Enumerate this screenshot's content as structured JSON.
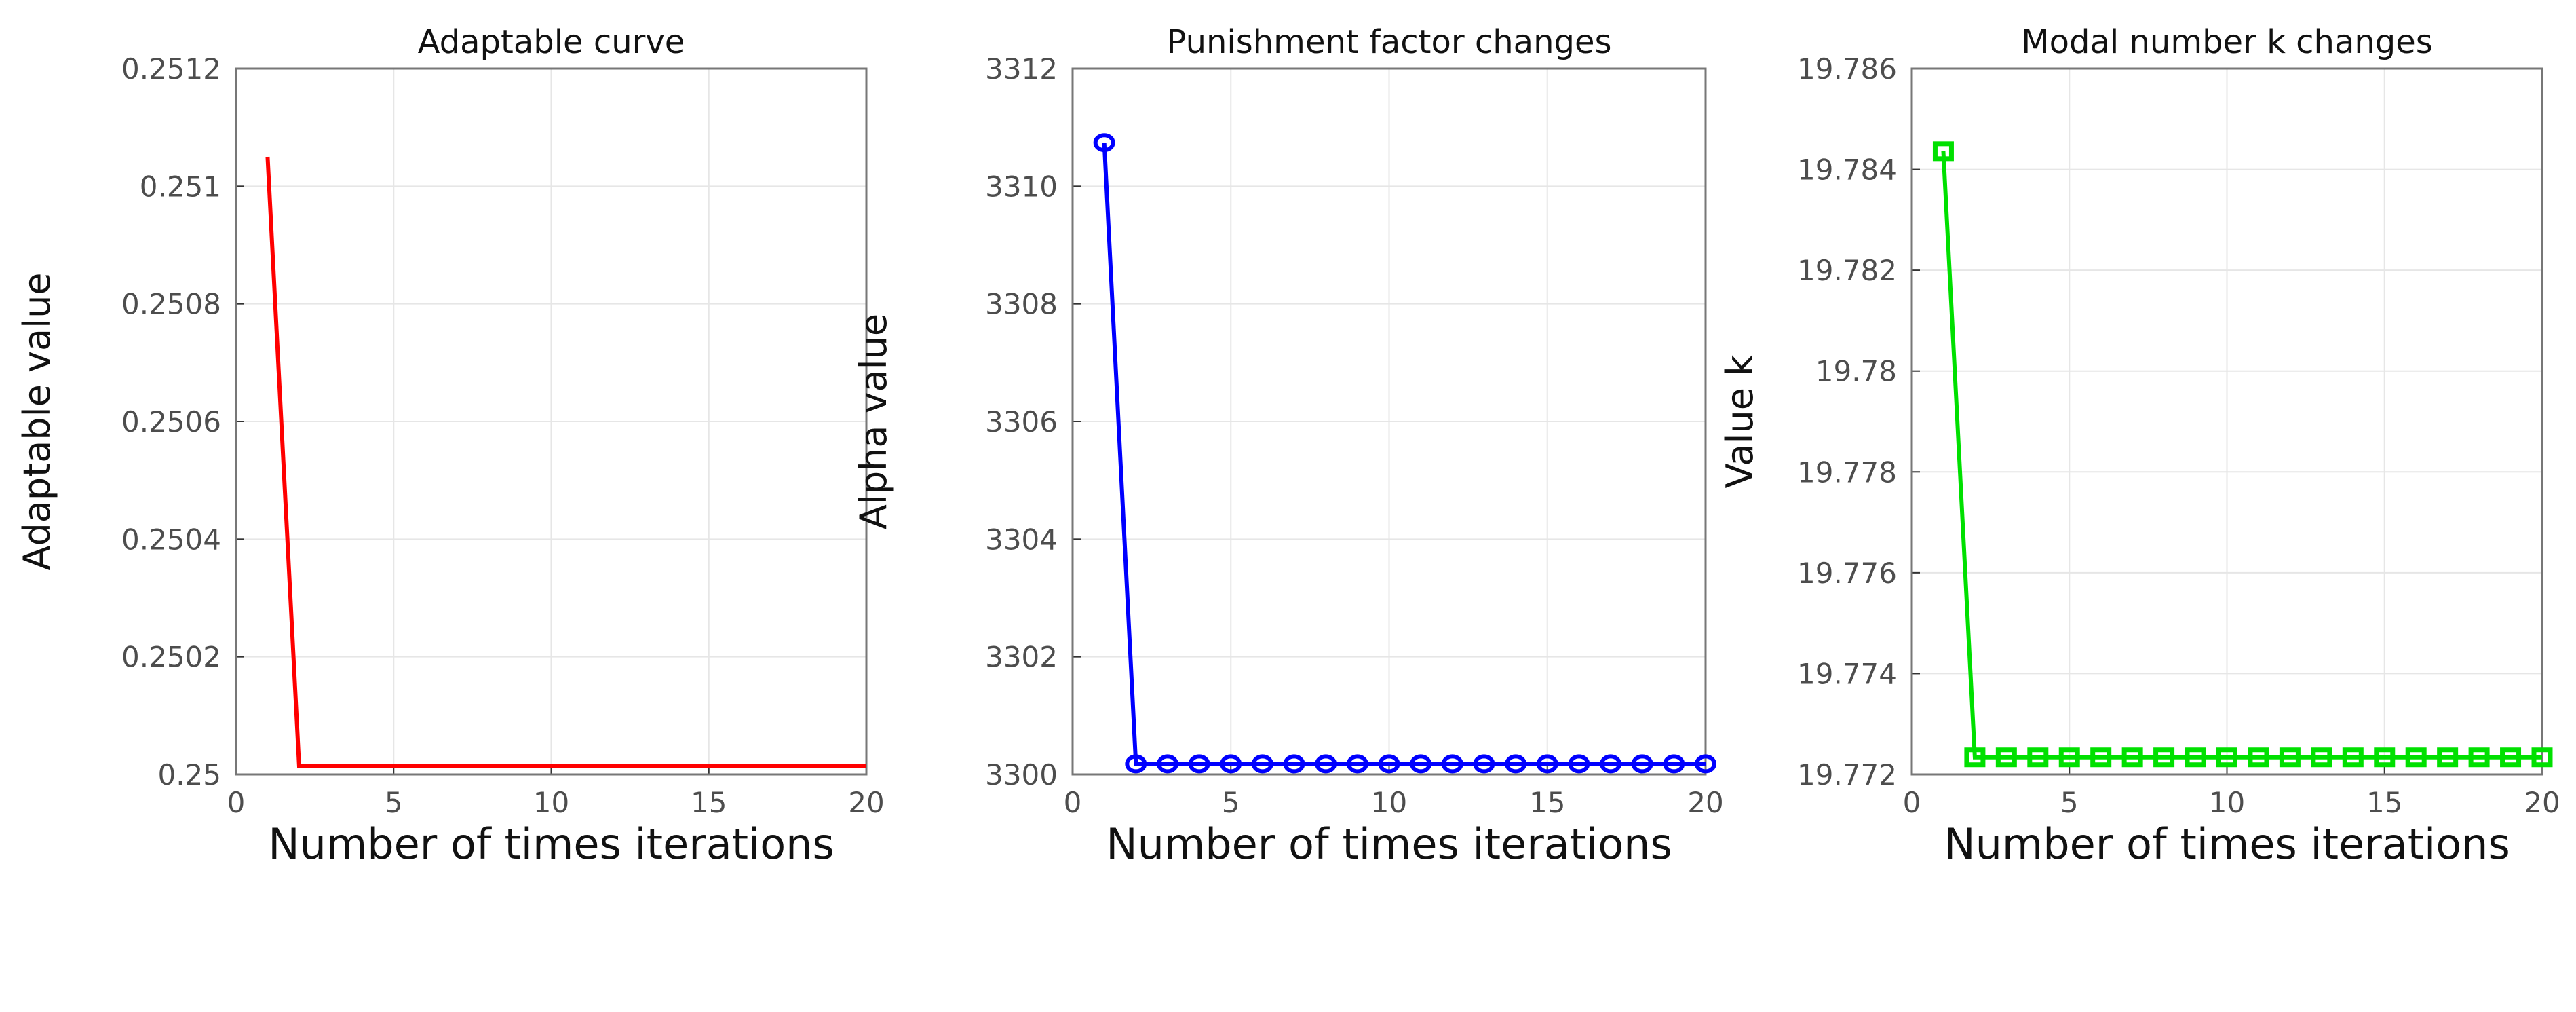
{
  "chart_data": [
    {
      "type": "line",
      "title": "Adaptable curve",
      "xlabel": "Number of times iterations",
      "ylabel": "Adaptable value",
      "xlim": [
        0,
        20
      ],
      "ylim": [
        0.25,
        0.2512
      ],
      "xticks": [
        "0",
        "5",
        "10",
        "15",
        "20"
      ],
      "yticks": [
        "0.25",
        "0.2502",
        "0.2504",
        "0.2506",
        "0.2508",
        "0.251",
        "0.2512"
      ],
      "grid": true,
      "color": "#ff0000",
      "marker": "none",
      "series": [
        {
          "x": [
            1,
            2,
            3,
            4,
            5,
            6,
            7,
            8,
            9,
            10,
            11,
            12,
            13,
            14,
            15,
            16,
            17,
            18,
            19,
            20
          ],
          "y": [
            0.25105,
            0.250015,
            0.250015,
            0.250015,
            0.250015,
            0.250015,
            0.250015,
            0.250015,
            0.250015,
            0.250015,
            0.250015,
            0.250015,
            0.250015,
            0.250015,
            0.250015,
            0.250015,
            0.250015,
            0.250015,
            0.250015,
            0.250015
          ]
        }
      ]
    },
    {
      "type": "line",
      "title": "Punishment factor changes",
      "xlabel": "Number of times iterations",
      "ylabel": "Alpha value",
      "xlim": [
        0,
        20
      ],
      "ylim": [
        3300,
        3312
      ],
      "xticks": [
        "0",
        "5",
        "10",
        "15",
        "20"
      ],
      "yticks": [
        "3300",
        "3302",
        "3304",
        "3306",
        "3308",
        "3310",
        "3312"
      ],
      "grid": true,
      "color": "#0000ff",
      "marker": "circle",
      "series": [
        {
          "x": [
            1,
            2,
            3,
            4,
            5,
            6,
            7,
            8,
            9,
            10,
            11,
            12,
            13,
            14,
            15,
            16,
            17,
            18,
            19,
            20
          ],
          "y": [
            3310.74,
            3300.18,
            3300.18,
            3300.18,
            3300.18,
            3300.18,
            3300.18,
            3300.18,
            3300.18,
            3300.18,
            3300.18,
            3300.18,
            3300.18,
            3300.18,
            3300.18,
            3300.18,
            3300.18,
            3300.18,
            3300.18,
            3300.18
          ]
        }
      ]
    },
    {
      "type": "line",
      "title": "Modal number k changes",
      "xlabel": "Number of times iterations",
      "ylabel": "Value k",
      "xlim": [
        0,
        20
      ],
      "ylim": [
        19.772,
        19.786
      ],
      "xticks": [
        "0",
        "5",
        "10",
        "15",
        "20"
      ],
      "yticks": [
        "19.772",
        "19.774",
        "19.776",
        "19.778",
        "19.78",
        "19.782",
        "19.784",
        "19.786"
      ],
      "grid": true,
      "color": "#00e000",
      "marker": "square",
      "series": [
        {
          "x": [
            1,
            2,
            3,
            4,
            5,
            6,
            7,
            8,
            9,
            10,
            11,
            12,
            13,
            14,
            15,
            16,
            17,
            18,
            19,
            20
          ],
          "y": [
            19.78436,
            19.77234,
            19.77234,
            19.77234,
            19.77234,
            19.77234,
            19.77234,
            19.77234,
            19.77234,
            19.77234,
            19.77234,
            19.77234,
            19.77234,
            19.77234,
            19.77234,
            19.77234,
            19.77234,
            19.77234,
            19.77234,
            19.77234
          ]
        }
      ]
    }
  ]
}
